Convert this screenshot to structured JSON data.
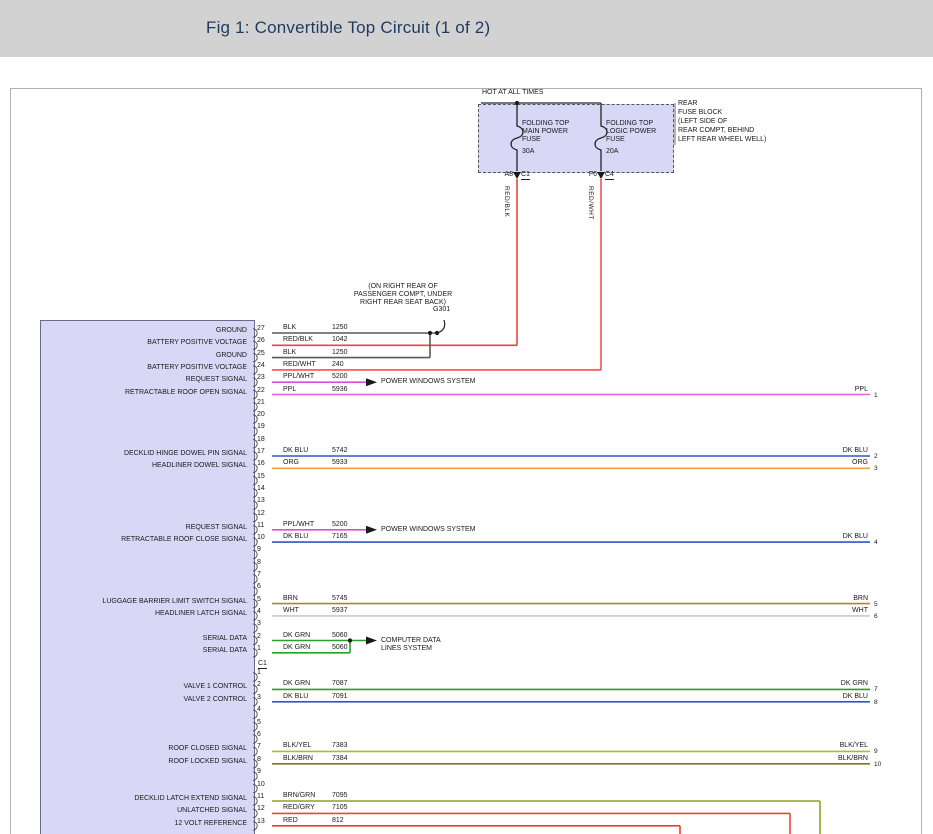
{
  "header": {
    "title": "Fig 1: Convertible Top Circuit (1 of 2)"
  },
  "power": {
    "hot_label": "HOT AT ALL TIMES",
    "fuse_block_location": [
      "REAR",
      "FUSE BLOCK",
      "(LEFT SIDE OF",
      "REAR COMPT, BEHIND",
      "LEFT REAR WHEEL WELL)"
    ],
    "fuses": [
      {
        "name_lines": [
          "FOLDING TOP",
          "MAIN POWER",
          "FUSE"
        ],
        "rating": "30A",
        "pin": "A8",
        "connector": "C1",
        "wire_label": "RED/BLK"
      },
      {
        "name_lines": [
          "FOLDING TOP",
          "LOGIC POWER",
          "FUSE"
        ],
        "rating": "20A",
        "pin": "F6",
        "connector": "C4",
        "wire_label": "RED/WHT"
      }
    ]
  },
  "ground": {
    "name": "G301",
    "location_lines": [
      "(ON RIGHT REAR OF",
      "PASSENGER COMPT, UNDER",
      "RIGHT REAR SEAT BACK)"
    ]
  },
  "destinations": {
    "power_windows": [
      "POWER WINDOWS SYSTEM"
    ],
    "computer_data": [
      "COMPUTER DATA",
      "LINES SYSTEM"
    ]
  },
  "module": {
    "connectors": [
      {
        "id": "C1",
        "pins": [
          {
            "pin": "27",
            "label": "GROUND",
            "color": "BLK",
            "circuit": "1250",
            "dest": "ground"
          },
          {
            "pin": "26",
            "label": "BATTERY POSITIVE VOLTAGE",
            "color": "RED/BLK",
            "circuit": "1042",
            "dest": "fuse-left"
          },
          {
            "pin": "25",
            "label": "GROUND",
            "color": "BLK",
            "circuit": "1250",
            "dest": "join-up"
          },
          {
            "pin": "24",
            "label": "BATTERY POSITIVE VOLTAGE",
            "color": "RED/WHT",
            "circuit": "240",
            "dest": "fuse-right"
          },
          {
            "pin": "23",
            "label": "REQUEST SIGNAL",
            "color": "PPL/WHT",
            "circuit": "5200",
            "dest": "arrow",
            "arrow": "power_windows"
          },
          {
            "pin": "22",
            "label": "RETRACTABLE ROOF OPEN SIGNAL",
            "color": "PPL",
            "circuit": "5936",
            "dest": "edge",
            "edge_label": "PPL",
            "edge_num": "1"
          },
          {
            "pin": "21"
          },
          {
            "pin": "20"
          },
          {
            "pin": "19"
          },
          {
            "pin": "18"
          },
          {
            "pin": "17",
            "label": "DECKLID HINGE DOWEL PIN SIGNAL",
            "color": "DK BLU",
            "circuit": "5742",
            "dest": "edge",
            "edge_label": "DK BLU",
            "edge_num": "2"
          },
          {
            "pin": "16",
            "label": "HEADLINER DOWEL SIGNAL",
            "color": "ORG",
            "circuit": "5933",
            "dest": "edge",
            "edge_label": "ORG",
            "edge_num": "3"
          },
          {
            "pin": "15"
          },
          {
            "pin": "14"
          },
          {
            "pin": "13"
          },
          {
            "pin": "12"
          },
          {
            "pin": "11",
            "label": "REQUEST SIGNAL",
            "color": "PPL/WHT",
            "circuit": "5200",
            "dest": "arrow",
            "arrow": "power_windows"
          },
          {
            "pin": "10",
            "label": "RETRACTABLE ROOF CLOSE SIGNAL",
            "color": "DK BLU",
            "circuit": "7165",
            "dest": "edge",
            "edge_label": "DK BLU",
            "edge_num": "4"
          },
          {
            "pin": "9"
          },
          {
            "pin": "8"
          },
          {
            "pin": "7"
          },
          {
            "pin": "6"
          },
          {
            "pin": "5",
            "label": "LUGGAGE BARRIER LIMIT SWITCH SIGNAL",
            "color": "BRN",
            "circuit": "5745",
            "dest": "edge",
            "edge_label": "BRN",
            "edge_num": "5"
          },
          {
            "pin": "4",
            "label": "HEADLINER LATCH SIGNAL",
            "color": "WHT",
            "circuit": "5937",
            "dest": "edge",
            "edge_label": "WHT",
            "edge_num": "6"
          },
          {
            "pin": "3"
          },
          {
            "pin": "2",
            "label": "SERIAL DATA",
            "color": "DK GRN",
            "circuit": "5060",
            "dest": "arrow",
            "arrow": "computer_data"
          },
          {
            "pin": "1",
            "label": "SERIAL DATA",
            "color": "DK GRN",
            "circuit": "5060",
            "dest": "join-up"
          }
        ]
      },
      {
        "id": "",
        "pins": [
          {
            "pin": "1"
          },
          {
            "pin": "2",
            "label": "VALVE 1 CONTROL",
            "color": "DK GRN",
            "circuit": "7087",
            "dest": "edge",
            "edge_label": "DK GRN",
            "edge_num": "7"
          },
          {
            "pin": "3",
            "label": "VALVE 2 CONTROL",
            "color": "DK BLU",
            "circuit": "7091",
            "dest": "edge",
            "edge_label": "DK BLU",
            "edge_num": "8"
          },
          {
            "pin": "4"
          },
          {
            "pin": "5"
          },
          {
            "pin": "6"
          },
          {
            "pin": "7",
            "label": "ROOF CLOSED SIGNAL",
            "color": "BLK/YEL",
            "circuit": "7383",
            "dest": "edge",
            "edge_label": "BLK/YEL",
            "edge_num": "9"
          },
          {
            "pin": "8",
            "label": "ROOF LOCKED SIGNAL",
            "color": "BLK/BRN",
            "circuit": "7384",
            "dest": "edge",
            "edge_label": "BLK/BRN",
            "edge_num": "10"
          },
          {
            "pin": "9"
          },
          {
            "pin": "10"
          },
          {
            "pin": "11",
            "label": "DECKLID LATCH EXTEND SIGNAL",
            "color": "BRN/GRN",
            "circuit": "7095",
            "dest": "down"
          },
          {
            "pin": "12",
            "label": "UNLATCHED SIGNAL",
            "color": "RED/GRY",
            "circuit": "7105",
            "dest": "down"
          },
          {
            "pin": "13",
            "label": "12 VOLT REFERENCE",
            "color": "RED",
            "circuit": "812",
            "dest": "down"
          }
        ]
      }
    ]
  },
  "colors": {
    "BLK": "#595959",
    "RED/BLK": "#e8463c",
    "RED/WHT": "#f0544a",
    "PPL/WHT": "#d94fd9",
    "PPL": "#e45fe4",
    "DK BLU": "#3353cc",
    "ORG": "#eda23d",
    "BRN": "#aa8a26",
    "WHT": "#c9c9c9",
    "DK GRN": "#27a02e",
    "BLK/YEL": "#b6b630",
    "BLK/BRN": "#85721c",
    "BRN/GRN": "#92a022",
    "RED/GRY": "#e8463c",
    "RED": "#f23c32"
  }
}
